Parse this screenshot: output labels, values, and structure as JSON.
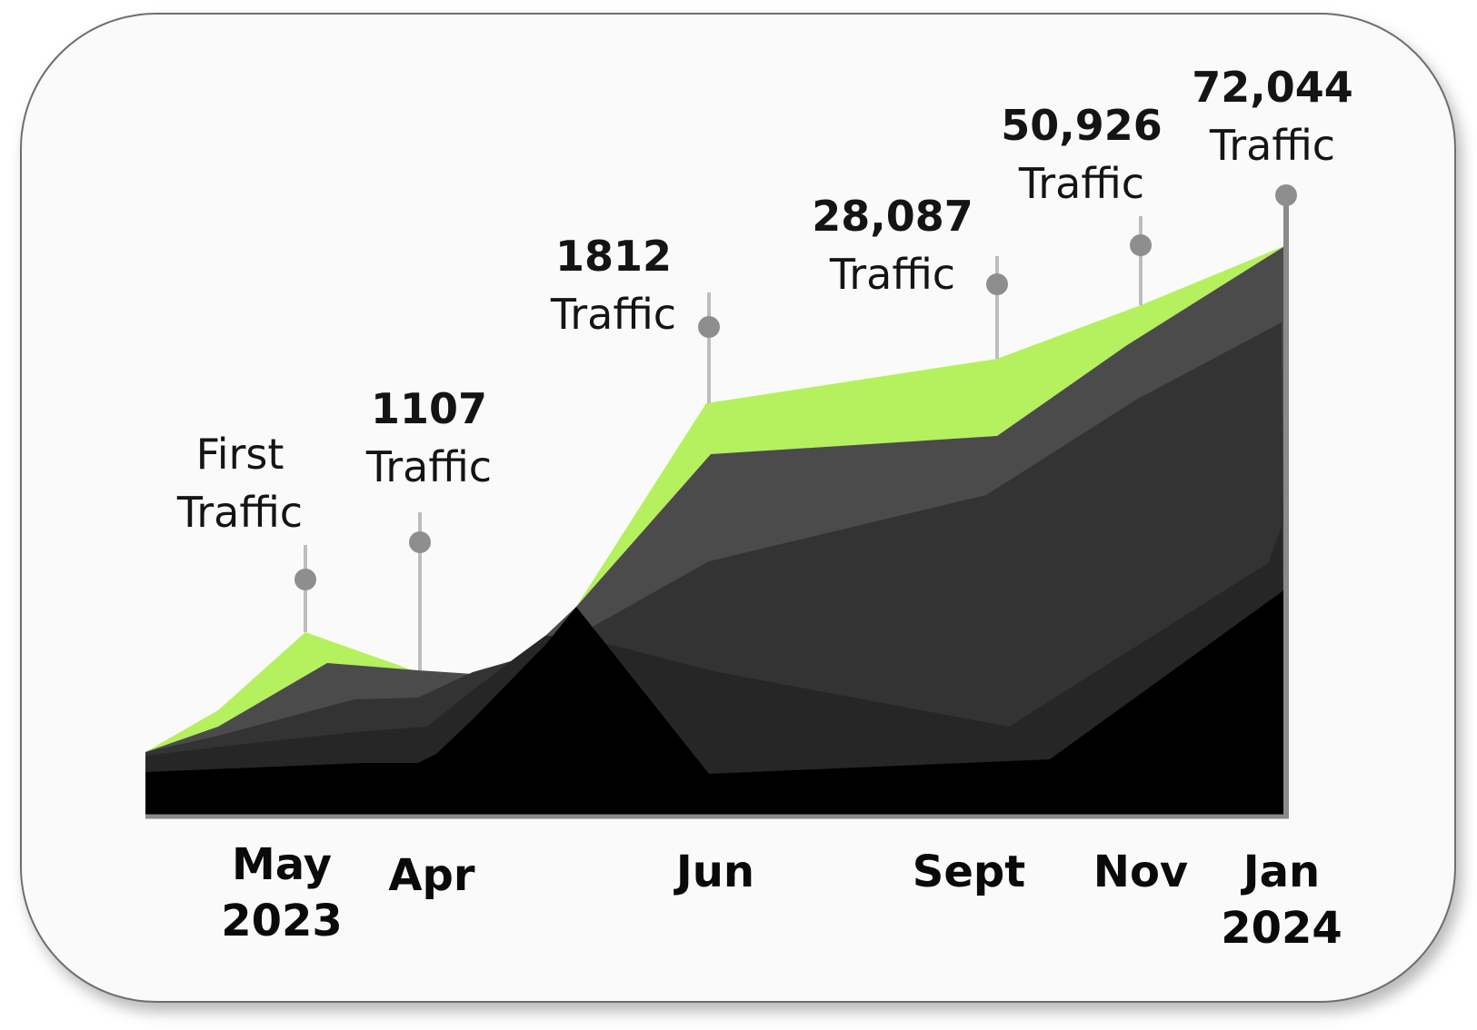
{
  "chart_data": {
    "type": "area",
    "title": "",
    "xlabel": "",
    "ylabel": "",
    "x_ticks": [
      {
        "label": "May",
        "sublabel": "2023"
      },
      {
        "label": "Apr",
        "sublabel": ""
      },
      {
        "label": "Jun",
        "sublabel": ""
      },
      {
        "label": "Sept",
        "sublabel": ""
      },
      {
        "label": "Nov",
        "sublabel": ""
      },
      {
        "label": "Jan",
        "sublabel": "2024"
      }
    ],
    "annotations": [
      {
        "value": "",
        "line1": "First",
        "line2": "Traffic"
      },
      {
        "value": "1107",
        "line1": "1107",
        "line2": "Traffic"
      },
      {
        "value": "1812",
        "line1": "1812",
        "line2": "Traffic"
      },
      {
        "value": "28,087",
        "line1": "28,087",
        "line2": "Traffic"
      },
      {
        "value": "50,926",
        "line1": "50,926",
        "line2": "Traffic"
      },
      {
        "value": "72,044",
        "line1": "72,044",
        "line2": "Traffic"
      }
    ],
    "colors": {
      "total": "#b5f05e",
      "layer2": "#4b4b4b",
      "layer3": "#333333",
      "layer4": "#262626",
      "layer5": "#000000",
      "pin": "#8e8e8e",
      "axis": "#8a8a8a"
    }
  }
}
